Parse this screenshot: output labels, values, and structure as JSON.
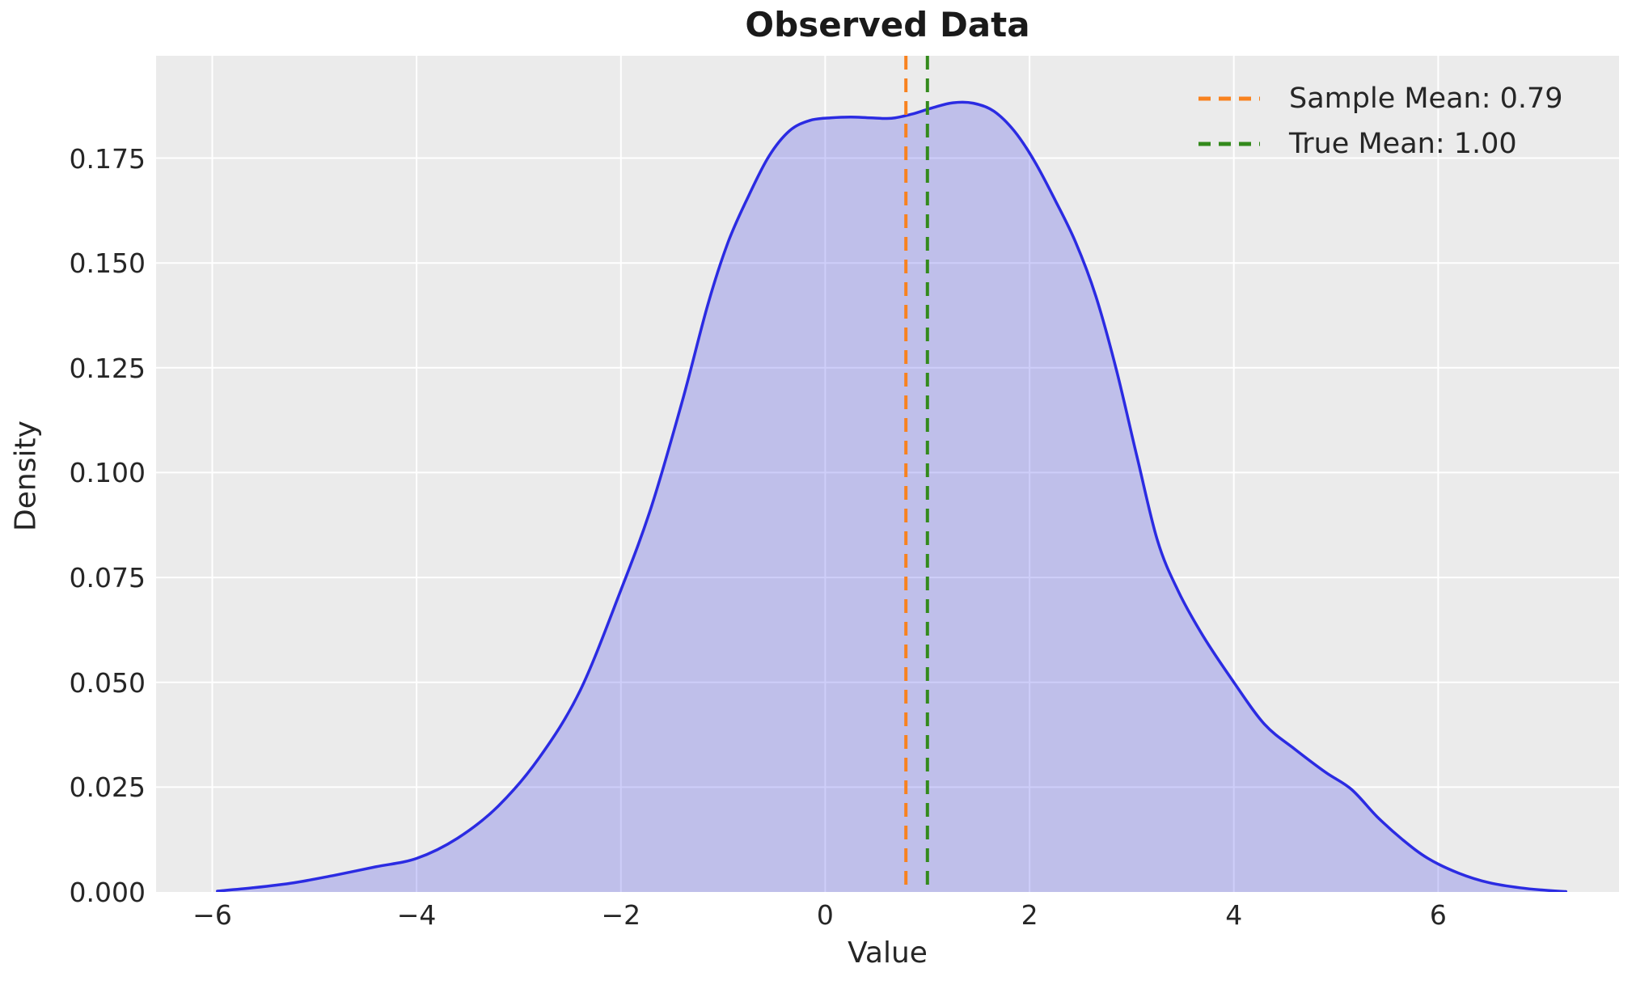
{
  "chart_data": {
    "type": "area",
    "title": "Observed Data",
    "xlabel": "Value",
    "ylabel": "Density",
    "xlim": [
      -6.55,
      7.77
    ],
    "ylim": [
      0,
      0.1994
    ],
    "grid": true,
    "x_ticks": [
      {
        "v": -6,
        "label": "−6"
      },
      {
        "v": -4,
        "label": "−4"
      },
      {
        "v": -2,
        "label": "−2"
      },
      {
        "v": 0,
        "label": "0"
      },
      {
        "v": 2,
        "label": "2"
      },
      {
        "v": 4,
        "label": "4"
      },
      {
        "v": 6,
        "label": "6"
      }
    ],
    "y_ticks": [
      {
        "v": 0.0,
        "label": "0.000"
      },
      {
        "v": 0.025,
        "label": "0.025"
      },
      {
        "v": 0.05,
        "label": "0.050"
      },
      {
        "v": 0.075,
        "label": "0.075"
      },
      {
        "v": 0.1,
        "label": "0.100"
      },
      {
        "v": 0.125,
        "label": "0.125"
      },
      {
        "v": 0.15,
        "label": "0.150"
      },
      {
        "v": 0.175,
        "label": "0.175"
      }
    ],
    "series": [
      {
        "name": "kde-density-curve",
        "x": [
          -5.95,
          -5.6,
          -5.2,
          -4.8,
          -4.4,
          -4.0,
          -3.6,
          -3.2,
          -2.8,
          -2.4,
          -2.0,
          -1.7,
          -1.4,
          -1.15,
          -0.95,
          -0.75,
          -0.55,
          -0.35,
          -0.15,
          0.05,
          0.25,
          0.45,
          0.65,
          0.85,
          1.05,
          1.25,
          1.45,
          1.65,
          1.85,
          2.05,
          2.25,
          2.45,
          2.65,
          2.85,
          3.05,
          3.25,
          3.45,
          3.7,
          4.0,
          4.3,
          4.6,
          4.9,
          5.15,
          5.4,
          5.65,
          5.9,
          6.2,
          6.5,
          6.8,
          7.1,
          7.25
        ],
        "y": [
          0.0002,
          0.001,
          0.0022,
          0.004,
          0.006,
          0.008,
          0.0128,
          0.0205,
          0.032,
          0.048,
          0.072,
          0.092,
          0.117,
          0.14,
          0.155,
          0.166,
          0.1755,
          0.1815,
          0.184,
          0.1846,
          0.1848,
          0.1846,
          0.1845,
          0.1855,
          0.187,
          0.1882,
          0.1881,
          0.1862,
          0.1815,
          0.1742,
          0.165,
          0.155,
          0.142,
          0.1245,
          0.104,
          0.084,
          0.072,
          0.061,
          0.05,
          0.04,
          0.034,
          0.0285,
          0.0245,
          0.018,
          0.0125,
          0.008,
          0.0045,
          0.0022,
          0.001,
          0.0003,
          0.0001
        ]
      }
    ],
    "vlines": [
      {
        "x": 0.79,
        "color": "#f8821f",
        "style": "dashed",
        "label": "Sample Mean: 0.79"
      },
      {
        "x": 1.0,
        "color": "#338a1c",
        "style": "dashed",
        "label": "True Mean: 1.00"
      }
    ],
    "legend": {
      "position": "upper right",
      "entries": [
        {
          "label": "Sample Mean: 0.79",
          "color": "#f8821f"
        },
        {
          "label": "True Mean: 1.00",
          "color": "#338a1c"
        }
      ]
    },
    "colors": {
      "figure_bg": "#ffffff",
      "axes_bg": "#ebebeb",
      "grid": "#ffffff",
      "curve_line": "#2b2be2",
      "curve_fill": "rgba(50,50,230,0.24)",
      "sample_mean_line": "#f8821f",
      "true_mean_line": "#338a1c",
      "text": "#262626",
      "title_text": "#1a1a1a"
    }
  }
}
